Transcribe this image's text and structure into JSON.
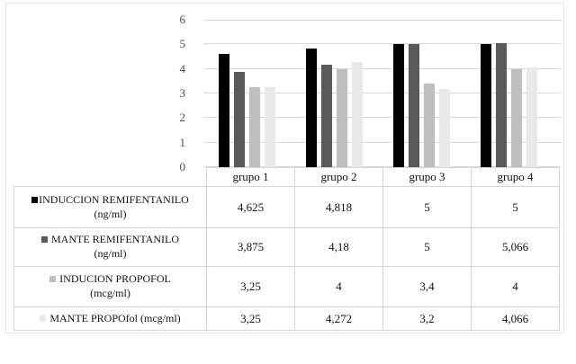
{
  "chart_data": {
    "type": "bar",
    "title": "",
    "xlabel": "",
    "ylabel": "",
    "categories": [
      "grupo 1",
      "grupo 2",
      "grupo 3",
      "grupo 4"
    ],
    "series": [
      {
        "name": "INDUCCION REMIFENTANILO (ng/ml)",
        "color": "#010101",
        "values": [
          4.625,
          4.818,
          5,
          5
        ]
      },
      {
        "name": "MANTE REMIFENTANILO (ng/ml)",
        "color": "#595959",
        "values": [
          3.875,
          4.18,
          5,
          5.066
        ]
      },
      {
        "name": "INDUCION PROPOFOL (mcg/ml)",
        "color": "#bfbfbf",
        "values": [
          3.25,
          4,
          3.4,
          4
        ]
      },
      {
        "name": "MANTE PROPOfol (mcg/ml)",
        "color": "#e9e9e9",
        "values": [
          3.25,
          4.272,
          3.2,
          4.066
        ]
      }
    ],
    "ylim": [
      0,
      6
    ],
    "yticks": [
      0,
      1,
      2,
      3,
      4,
      5,
      6
    ],
    "grid": true,
    "legend_position": "left-of-data-table"
  },
  "data_table": {
    "rows": [
      {
        "label_line1": "INDUCCION REMIFENTANILO",
        "label_line2": "(ng/ml)",
        "values": [
          "4,625",
          "4,818",
          "5",
          "5"
        ]
      },
      {
        "label_line1": "MANTE REMIFENTANILO",
        "label_line2": "(ng/ml)",
        "values": [
          "3,875",
          "4,18",
          "5",
          "5,066"
        ]
      },
      {
        "label_line1": "INDUCION PROPOFOL",
        "label_line2": "(mcg/ml)",
        "values": [
          "3,25",
          "4",
          "3,4",
          "4"
        ]
      },
      {
        "label_line1": "MANTE PROPOfol (mcg/ml)",
        "label_line2": "",
        "values": [
          "3,25",
          "4,272",
          "3,2",
          "4,066"
        ]
      }
    ]
  },
  "colors": {
    "gridline": "#d9d9d9",
    "table_border": "#d6d6d6",
    "frame_border": "#e3e3e3",
    "tick_text": "#4d4d4d",
    "table_text": "#141414"
  }
}
